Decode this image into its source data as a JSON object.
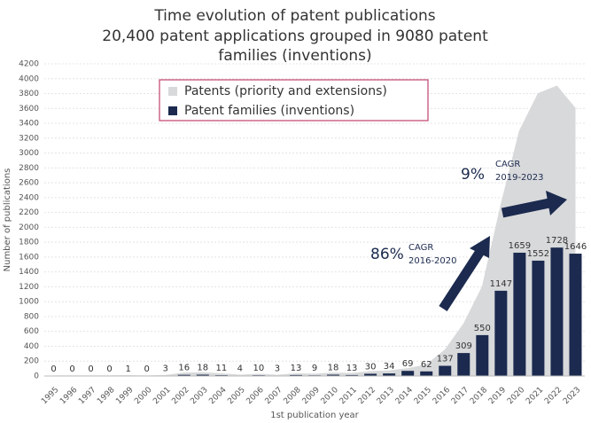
{
  "chart_data": {
    "type": "bar",
    "title": "Time evolution of patent publications",
    "subtitle": [
      "20,400 patent applications grouped in 9080 patent",
      "families (inventions)"
    ],
    "x_label": "1st publication year",
    "y_label": "Number of publications",
    "categories": [
      "1995",
      "1996",
      "1997",
      "1998",
      "1999",
      "2000",
      "2001",
      "2002",
      "2003",
      "2004",
      "2005",
      "2006",
      "2007",
      "2008",
      "2009",
      "2010",
      "2011",
      "2012",
      "2013",
      "2014",
      "2015",
      "2016",
      "2017",
      "2018",
      "2019",
      "2020",
      "2021",
      "2022",
      "2023"
    ],
    "series": [
      {
        "name": "Patents (priority and extensions)",
        "color": "#d8d9db",
        "kind": "area",
        "values": [
          2,
          2,
          2,
          2,
          4,
          2,
          8,
          40,
          45,
          30,
          12,
          25,
          10,
          30,
          25,
          40,
          35,
          60,
          70,
          100,
          150,
          350,
          700,
          1200,
          2300,
          3300,
          3800,
          3900,
          3600
        ]
      },
      {
        "name": "Patent families (inventions)",
        "color": "#1b2a4e",
        "kind": "bar",
        "values": [
          0,
          0,
          0,
          0,
          1,
          0,
          3,
          16,
          18,
          11,
          4,
          10,
          3,
          13,
          9,
          18,
          13,
          30,
          34,
          69,
          62,
          137,
          309,
          550,
          1147,
          1659,
          1552,
          1728,
          1646
        ]
      }
    ],
    "annotations": [
      "86%",
      "CAGR",
      "2016-2020",
      "9%",
      "CAGR",
      "2019-2023"
    ],
    "ylim": [
      0,
      4200
    ],
    "yticks": [
      0,
      200,
      400,
      600,
      800,
      1000,
      1200,
      1400,
      1600,
      1800,
      2000,
      2200,
      2400,
      2600,
      2800,
      3000,
      3200,
      3400,
      3600,
      3800,
      4000,
      4200
    ],
    "grid": true
  }
}
